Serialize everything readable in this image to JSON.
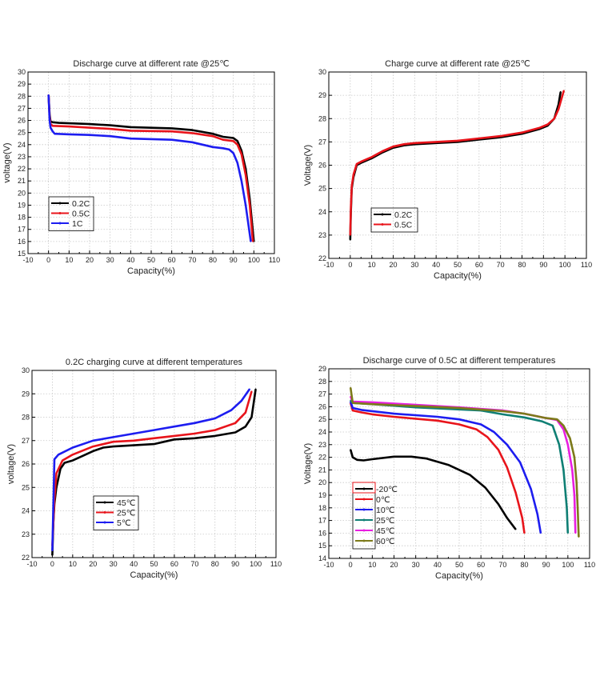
{
  "chart_data": [
    {
      "type": "line",
      "title": "Discharge curve at different rate @25℃",
      "xlabel": "Capacity(%)",
      "ylabel": "voltage(V)",
      "xlim": [
        -10,
        110
      ],
      "xstep": 10,
      "ylim": [
        15,
        30
      ],
      "ystep": 1,
      "grid": true,
      "legend_position": "bottom-left",
      "series": [
        {
          "name": "0.2C",
          "color": "#000000",
          "points": [
            [
              0,
              28.1
            ],
            [
              0.5,
              26.5
            ],
            [
              1,
              25.9
            ],
            [
              2,
              25.85
            ],
            [
              5,
              25.8
            ],
            [
              20,
              25.7
            ],
            [
              30,
              25.6
            ],
            [
              40,
              25.45
            ],
            [
              60,
              25.35
            ],
            [
              70,
              25.2
            ],
            [
              80,
              24.9
            ],
            [
              85,
              24.65
            ],
            [
              90,
              24.55
            ],
            [
              92,
              24.3
            ],
            [
              94,
              23.5
            ],
            [
              96,
              22
            ],
            [
              98,
              19.5
            ],
            [
              100,
              16
            ]
          ]
        },
        {
          "name": "0.5C",
          "color": "#e8141b",
          "points": [
            [
              0,
              28.1
            ],
            [
              0.5,
              26.3
            ],
            [
              1,
              25.7
            ],
            [
              2,
              25.55
            ],
            [
              10,
              25.5
            ],
            [
              30,
              25.3
            ],
            [
              40,
              25.15
            ],
            [
              60,
              25.1
            ],
            [
              70,
              24.95
            ],
            [
              80,
              24.7
            ],
            [
              85,
              24.4
            ],
            [
              90,
              24.3
            ],
            [
              92,
              24.0
            ],
            [
              94,
              23.2
            ],
            [
              96,
              21.5
            ],
            [
              98,
              19
            ],
            [
              99.5,
              16
            ]
          ]
        },
        {
          "name": "1C",
          "color": "#1d1df0",
          "points": [
            [
              0,
              28.1
            ],
            [
              0.5,
              26
            ],
            [
              1,
              25.4
            ],
            [
              2,
              25.1
            ],
            [
              3,
              24.9
            ],
            [
              10,
              24.85
            ],
            [
              20,
              24.8
            ],
            [
              30,
              24.7
            ],
            [
              40,
              24.5
            ],
            [
              60,
              24.4
            ],
            [
              70,
              24.2
            ],
            [
              80,
              23.8
            ],
            [
              85,
              23.7
            ],
            [
              88,
              23.6
            ],
            [
              90,
              23.3
            ],
            [
              92,
              22.5
            ],
            [
              94,
              21
            ],
            [
              96,
              19
            ],
            [
              98.5,
              16
            ]
          ]
        }
      ]
    },
    {
      "type": "line",
      "title": "Charge curve at different rate @25℃",
      "xlabel": "Capacity(%)",
      "ylabel": "Voltage(V)",
      "xlim": [
        -10,
        110
      ],
      "xstep": 10,
      "ylim": [
        22,
        30
      ],
      "ystep": 1,
      "grid": true,
      "legend_position": "bottom-left",
      "series": [
        {
          "name": "0.2C",
          "color": "#000000",
          "points": [
            [
              0,
              22.8
            ],
            [
              0.3,
              24
            ],
            [
              0.7,
              25
            ],
            [
              1.5,
              25.5
            ],
            [
              3,
              26.0
            ],
            [
              5,
              26.1
            ],
            [
              10,
              26.3
            ],
            [
              15,
              26.55
            ],
            [
              20,
              26.75
            ],
            [
              25,
              26.85
            ],
            [
              30,
              26.9
            ],
            [
              40,
              26.95
            ],
            [
              50,
              27.0
            ],
            [
              60,
              27.1
            ],
            [
              70,
              27.2
            ],
            [
              80,
              27.35
            ],
            [
              88,
              27.55
            ],
            [
              92,
              27.7
            ],
            [
              95,
              28.0
            ],
            [
              97,
              28.6
            ],
            [
              98,
              29.15
            ]
          ]
        },
        {
          "name": "0.5C",
          "color": "#e8141b",
          "points": [
            [
              0,
              23.0
            ],
            [
              0.3,
              24.2
            ],
            [
              0.7,
              25.1
            ],
            [
              1.5,
              25.6
            ],
            [
              3,
              26.05
            ],
            [
              5,
              26.15
            ],
            [
              10,
              26.35
            ],
            [
              15,
              26.6
            ],
            [
              20,
              26.8
            ],
            [
              25,
              26.9
            ],
            [
              30,
              26.95
            ],
            [
              40,
              27.0
            ],
            [
              50,
              27.05
            ],
            [
              60,
              27.15
            ],
            [
              70,
              27.25
            ],
            [
              80,
              27.4
            ],
            [
              88,
              27.6
            ],
            [
              92,
              27.75
            ],
            [
              95,
              28.0
            ],
            [
              97,
              28.4
            ],
            [
              99.5,
              29.2
            ]
          ]
        }
      ]
    },
    {
      "type": "line",
      "title": "0.2C charging curve at different temperatures",
      "xlabel": "Capacity(%)",
      "ylabel": "voltage(V)",
      "xlim": [
        -10,
        110
      ],
      "xstep": 10,
      "ylim": [
        22,
        30
      ],
      "ystep": 1,
      "grid": true,
      "legend_position": "bottom-center",
      "series": [
        {
          "name": "45℃",
          "color": "#000000",
          "points": [
            [
              0,
              22.1
            ],
            [
              0.5,
              23.5
            ],
            [
              1,
              24.3
            ],
            [
              2,
              25
            ],
            [
              4,
              25.8
            ],
            [
              6,
              26.05
            ],
            [
              10,
              26.15
            ],
            [
              15,
              26.35
            ],
            [
              20,
              26.55
            ],
            [
              25,
              26.7
            ],
            [
              30,
              26.75
            ],
            [
              50,
              26.85
            ],
            [
              55,
              26.95
            ],
            [
              60,
              27.05
            ],
            [
              70,
              27.1
            ],
            [
              80,
              27.2
            ],
            [
              90,
              27.35
            ],
            [
              95,
              27.6
            ],
            [
              98,
              28
            ],
            [
              100,
              29.2
            ]
          ]
        },
        {
          "name": "25℃",
          "color": "#e8141b",
          "points": [
            [
              0,
              22.5
            ],
            [
              1,
              24.5
            ],
            [
              2,
              25.6
            ],
            [
              5,
              26.15
            ],
            [
              10,
              26.4
            ],
            [
              20,
              26.75
            ],
            [
              30,
              26.95
            ],
            [
              40,
              27.0
            ],
            [
              50,
              27.1
            ],
            [
              60,
              27.2
            ],
            [
              70,
              27.3
            ],
            [
              80,
              27.45
            ],
            [
              90,
              27.75
            ],
            [
              95,
              28.2
            ],
            [
              98,
              29.1
            ]
          ]
        },
        {
          "name": "5℃",
          "color": "#1d1df0",
          "points": [
            [
              0,
              22.3
            ],
            [
              1,
              26.2
            ],
            [
              3,
              26.4
            ],
            [
              10,
              26.7
            ],
            [
              20,
              27.0
            ],
            [
              30,
              27.15
            ],
            [
              40,
              27.3
            ],
            [
              50,
              27.45
            ],
            [
              60,
              27.6
            ],
            [
              70,
              27.75
            ],
            [
              80,
              27.95
            ],
            [
              88,
              28.3
            ],
            [
              93,
              28.7
            ],
            [
              97,
              29.2
            ]
          ]
        }
      ]
    },
    {
      "type": "line",
      "title": "Discharge curve of 0.5C at different temperatures",
      "xlabel": "Capacity(%)",
      "ylabel": "Voltage(V)",
      "xlim": [
        -10,
        110
      ],
      "xstep": 10,
      "ylim": [
        14,
        29
      ],
      "ystep": 1,
      "grid": true,
      "legend_position": "bottom-left",
      "series": [
        {
          "name": "-20℃",
          "color": "#000000",
          "points": [
            [
              0,
              22.6
            ],
            [
              1,
              22
            ],
            [
              3,
              21.8
            ],
            [
              6,
              21.75
            ],
            [
              10,
              21.85
            ],
            [
              20,
              22.05
            ],
            [
              28,
              22.05
            ],
            [
              35,
              21.9
            ],
            [
              45,
              21.4
            ],
            [
              55,
              20.6
            ],
            [
              62,
              19.6
            ],
            [
              68,
              18.3
            ],
            [
              72,
              17.2
            ],
            [
              76,
              16.3
            ]
          ]
        },
        {
          "name": "0℃",
          "color": "#e8141b",
          "points": [
            [
              0,
              26.3
            ],
            [
              1,
              25.7
            ],
            [
              5,
              25.55
            ],
            [
              10,
              25.4
            ],
            [
              20,
              25.2
            ],
            [
              30,
              25.05
            ],
            [
              40,
              24.9
            ],
            [
              50,
              24.6
            ],
            [
              58,
              24.2
            ],
            [
              63,
              23.6
            ],
            [
              68,
              22.6
            ],
            [
              72,
              21.2
            ],
            [
              76,
              19.2
            ],
            [
              79,
              17.2
            ],
            [
              80,
              16
            ]
          ]
        },
        {
          "name": "10℃",
          "color": "#1d1df0",
          "points": [
            [
              0,
              26.4
            ],
            [
              1,
              25.9
            ],
            [
              5,
              25.75
            ],
            [
              20,
              25.45
            ],
            [
              40,
              25.2
            ],
            [
              50,
              25.0
            ],
            [
              60,
              24.6
            ],
            [
              66,
              24.0
            ],
            [
              72,
              23.0
            ],
            [
              78,
              21.6
            ],
            [
              83,
              19.5
            ],
            [
              86,
              17.5
            ],
            [
              87.5,
              16
            ]
          ]
        },
        {
          "name": "25℃",
          "color": "#0f7f74",
          "points": [
            [
              0,
              26.5
            ],
            [
              1,
              26.3
            ],
            [
              10,
              26.2
            ],
            [
              30,
              25.95
            ],
            [
              60,
              25.7
            ],
            [
              70,
              25.4
            ],
            [
              80,
              25.15
            ],
            [
              88,
              24.85
            ],
            [
              93,
              24.5
            ],
            [
              96,
              23
            ],
            [
              98,
              21
            ],
            [
              99.5,
              18
            ],
            [
              100,
              16
            ]
          ]
        },
        {
          "name": "45℃",
          "color": "#e81ee0",
          "points": [
            [
              0,
              26.8
            ],
            [
              1,
              26.4
            ],
            [
              10,
              26.35
            ],
            [
              30,
              26.15
            ],
            [
              50,
              25.95
            ],
            [
              70,
              25.7
            ],
            [
              80,
              25.45
            ],
            [
              90,
              25.1
            ],
            [
              95,
              24.95
            ],
            [
              98,
              24.2
            ],
            [
              100,
              23
            ],
            [
              102,
              21
            ],
            [
              103,
              19
            ],
            [
              103.5,
              16
            ]
          ]
        },
        {
          "name": "60℃",
          "color": "#7d7a1a",
          "points": [
            [
              0,
              27.5
            ],
            [
              1,
              26.3
            ],
            [
              10,
              26.2
            ],
            [
              30,
              26.05
            ],
            [
              50,
              25.9
            ],
            [
              70,
              25.65
            ],
            [
              80,
              25.45
            ],
            [
              90,
              25.1
            ],
            [
              95,
              25.0
            ],
            [
              98,
              24.5
            ],
            [
              101,
              23.5
            ],
            [
              103,
              22
            ],
            [
              104,
              20
            ],
            [
              104.5,
              18
            ],
            [
              105,
              15.7
            ]
          ]
        }
      ]
    }
  ]
}
